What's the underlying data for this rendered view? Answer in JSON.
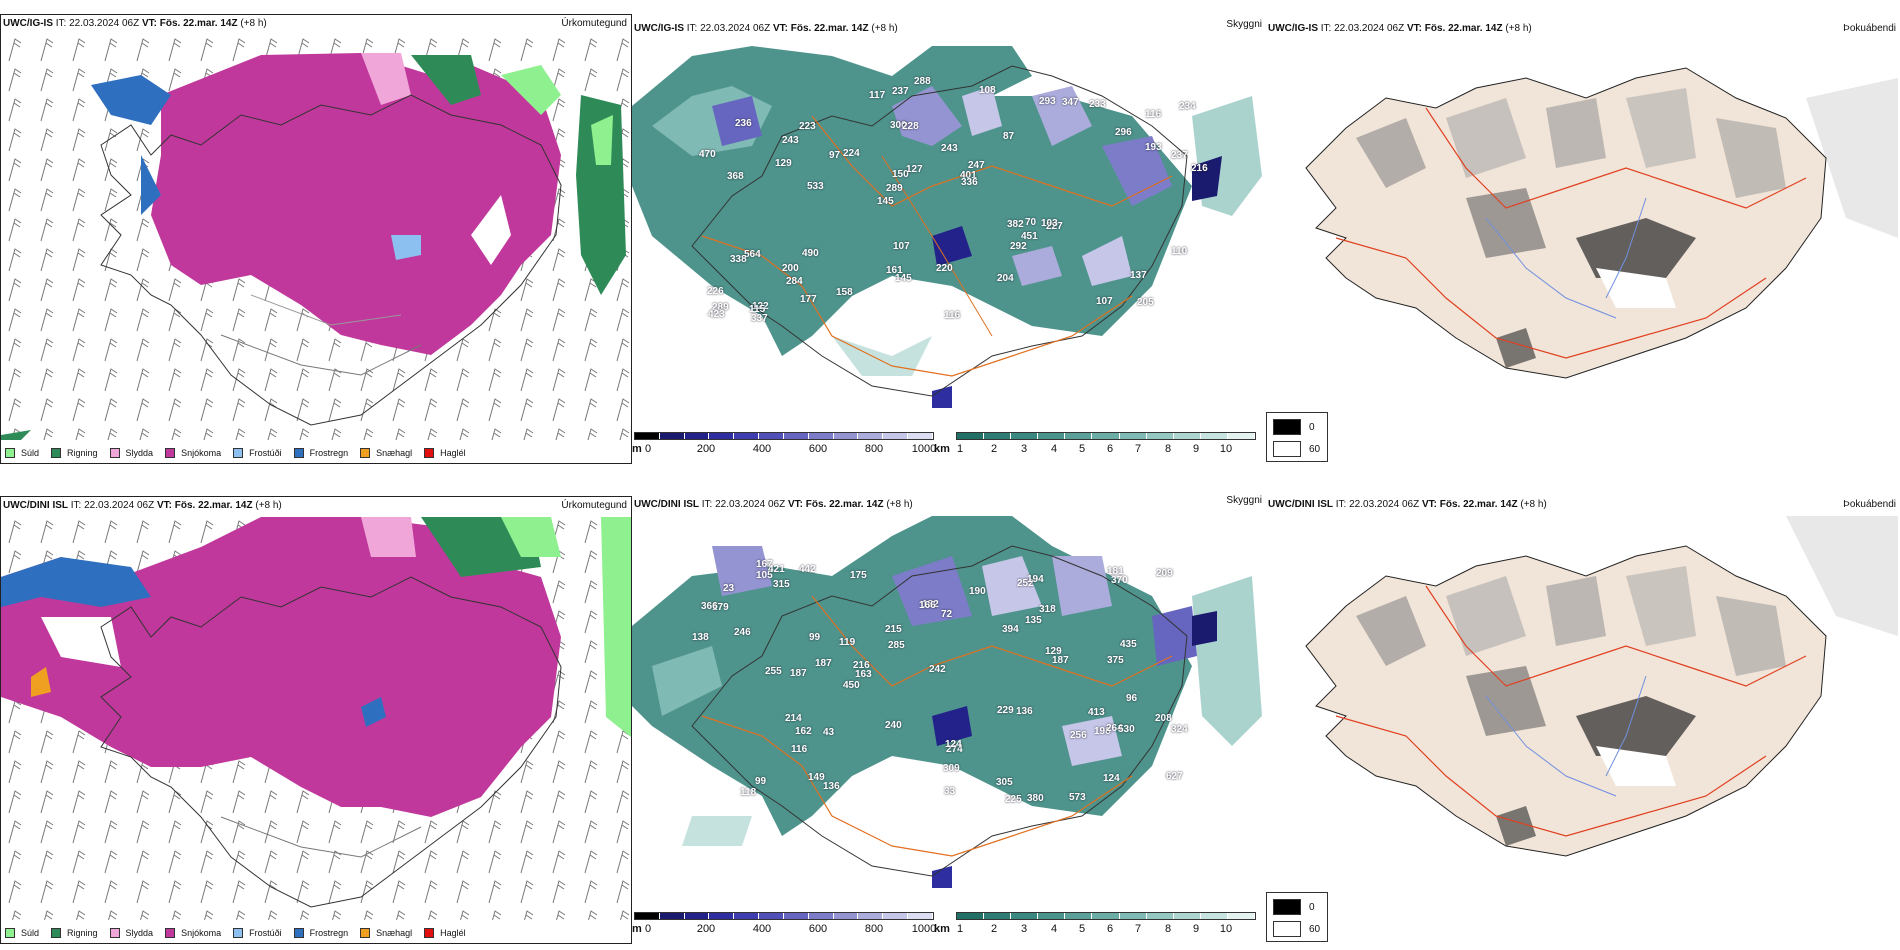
{
  "rows": [
    {
      "model": "UWC/IG-IS",
      "it_label": "IT:",
      "it_value": "22.03.2024 06Z",
      "vt_label": "VT:",
      "vt_value": "Fös. 22.mar. 14Z",
      "lead": "(+8 h)"
    },
    {
      "model": "UWC/DINI ISL",
      "it_label": "IT:",
      "it_value": "22.03.2024 06Z",
      "vt_label": "VT:",
      "vt_value": "Fös. 22.mar. 14Z",
      "lead": "(+8 h)"
    }
  ],
  "panel_titles": {
    "precip": "Úrkomutegund",
    "visibility": "Skyggni",
    "fog": "Þokuábendi"
  },
  "precip_legend": [
    {
      "label": "Súld",
      "color": "#8ff08f"
    },
    {
      "label": "Rigning",
      "color": "#2e8b57"
    },
    {
      "label": "Slydda",
      "color": "#f0a6d8"
    },
    {
      "label": "Snjókoma",
      "color": "#c0389b"
    },
    {
      "label": "Frostúði",
      "color": "#8cc0f0"
    },
    {
      "label": "Frostregn",
      "color": "#2f6fbf"
    },
    {
      "label": "Snæhagl",
      "color": "#f0a020"
    },
    {
      "label": "Haglél",
      "color": "#e01010"
    }
  ],
  "cloudbase_bar": {
    "unit": "m",
    "ticks": [
      "0",
      "200",
      "400",
      "600",
      "800",
      "1000"
    ],
    "colors": [
      "#000000",
      "#1a1a6e",
      "#22228a",
      "#2e2ea0",
      "#3d3db0",
      "#5050b8",
      "#6666c0",
      "#7c7cc8",
      "#9494d2",
      "#acacdc",
      "#c6c6e8",
      "#dcdcf2"
    ]
  },
  "visibility_bar": {
    "unit": "km",
    "ticks": [
      "1",
      "2",
      "3",
      "4",
      "5",
      "6",
      "7",
      "8",
      "9",
      "10"
    ],
    "colors": [
      "#226f66",
      "#2e7c73",
      "#3b8880",
      "#4a948c",
      "#5aa098",
      "#6cada6",
      "#80bab4",
      "#96c8c2",
      "#aed6d1",
      "#c8e4e0",
      "#e4f2f0"
    ]
  },
  "fog_legend": [
    {
      "value": "0",
      "color": "#000000"
    },
    {
      "value": "60",
      "color": "#ffffff"
    }
  ],
  "cloudbase_labels_top": [
    "205",
    "368",
    "116",
    "145",
    "87",
    "122",
    "300",
    "243",
    "564",
    "224",
    "226",
    "284",
    "228",
    "247",
    "227",
    "236",
    "237",
    "216",
    "382",
    "193",
    "289",
    "161",
    "150",
    "223",
    "293",
    "490",
    "107",
    "137",
    "103",
    "116",
    "97",
    "129",
    "292",
    "177",
    "237",
    "401",
    "289",
    "145",
    "336",
    "338",
    "296",
    "234",
    "451",
    "204",
    "200",
    "337",
    "423",
    "220",
    "233",
    "288",
    "533",
    "470",
    "243",
    "347",
    "115",
    "108",
    "117",
    "127",
    "110",
    "107",
    "158",
    "70"
  ],
  "cloudbase_labels_bottom": [
    "208",
    "573",
    "274",
    "99",
    "124",
    "119",
    "175",
    "318",
    "225",
    "375",
    "136",
    "370",
    "138",
    "129",
    "136",
    "315",
    "116",
    "149",
    "252",
    "182",
    "246",
    "413",
    "124",
    "255",
    "209",
    "394",
    "256",
    "240",
    "214",
    "187",
    "309",
    "435",
    "627",
    "305",
    "324",
    "187",
    "179",
    "181",
    "163",
    "167",
    "198",
    "135",
    "162",
    "442",
    "190",
    "229",
    "285",
    "216",
    "194",
    "380",
    "450",
    "187",
    "215",
    "264",
    "118",
    "96",
    "99",
    "105",
    "166",
    "530",
    "421",
    "242",
    "366",
    "72",
    "43",
    "23",
    "33"
  ]
}
